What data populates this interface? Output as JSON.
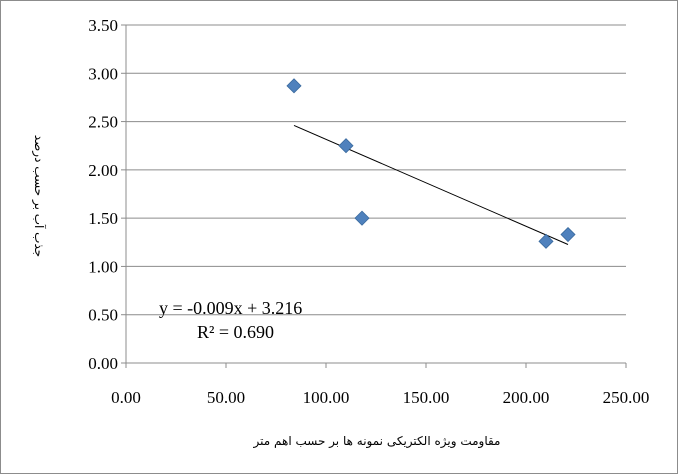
{
  "chart_data": {
    "type": "scatter",
    "title": "",
    "xlabel": "مقاومت ویژه الکتریکی نمونه ها بر حسب اهم متر",
    "ylabel": "جذب آب بر حسب درصد",
    "xlim": [
      0,
      250
    ],
    "ylim": [
      0,
      3.5
    ],
    "x_ticks": [
      "0.00",
      "50.00",
      "100.00",
      "150.00",
      "200.00",
      "250.00"
    ],
    "y_ticks": [
      "0.00",
      "0.50",
      "1.00",
      "1.50",
      "2.00",
      "2.50",
      "3.00",
      "3.50"
    ],
    "grid": "horizontal",
    "legend": "none",
    "marker": "diamond",
    "color": "#4f81bd",
    "points": [
      {
        "x": 84,
        "y": 2.87
      },
      {
        "x": 110,
        "y": 2.25
      },
      {
        "x": 118,
        "y": 1.5
      },
      {
        "x": 210,
        "y": 1.26
      },
      {
        "x": 221,
        "y": 1.33
      }
    ],
    "trendline": {
      "type": "linear",
      "slope": -0.009,
      "intercept": 3.216,
      "x_range": [
        84,
        221
      ],
      "equation_text": "y = -0.009x + 3.216",
      "r2_text": "R² = 0.690"
    }
  }
}
